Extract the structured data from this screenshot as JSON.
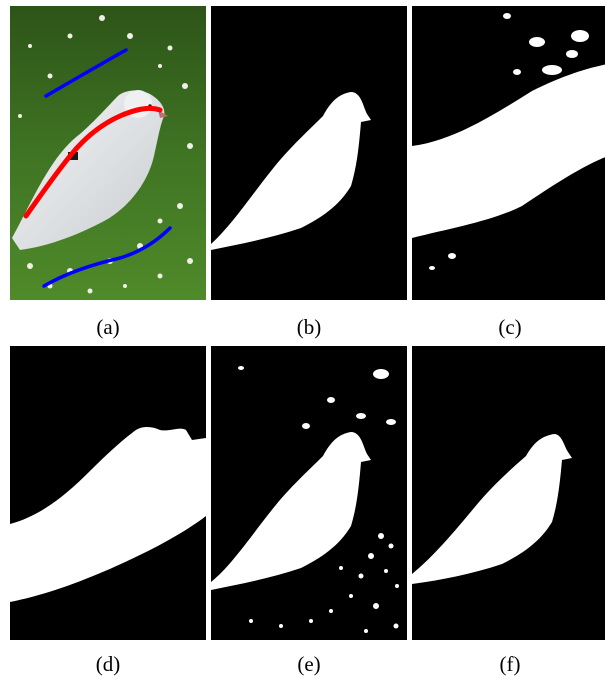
{
  "figure": {
    "panels": [
      {
        "id": "a",
        "caption": "(a)",
        "kind": "photo-with-scribbles"
      },
      {
        "id": "b",
        "caption": "(b)",
        "kind": "clean-mask"
      },
      {
        "id": "c",
        "caption": "(c)",
        "kind": "oversegmented-mask"
      },
      {
        "id": "d",
        "caption": "(d)",
        "kind": "grass-included-mask"
      },
      {
        "id": "e",
        "caption": "(e)",
        "kind": "noisy-mask"
      },
      {
        "id": "f",
        "caption": "(f)",
        "kind": "near-clean-mask"
      }
    ],
    "colors": {
      "foreground_scribble": "#ff0000",
      "background_scribble": "#0000ff",
      "mask_foreground": "#ffffff",
      "mask_background": "#000000",
      "grass": "#3b6a1f",
      "bird": "#e6e8ea"
    }
  }
}
